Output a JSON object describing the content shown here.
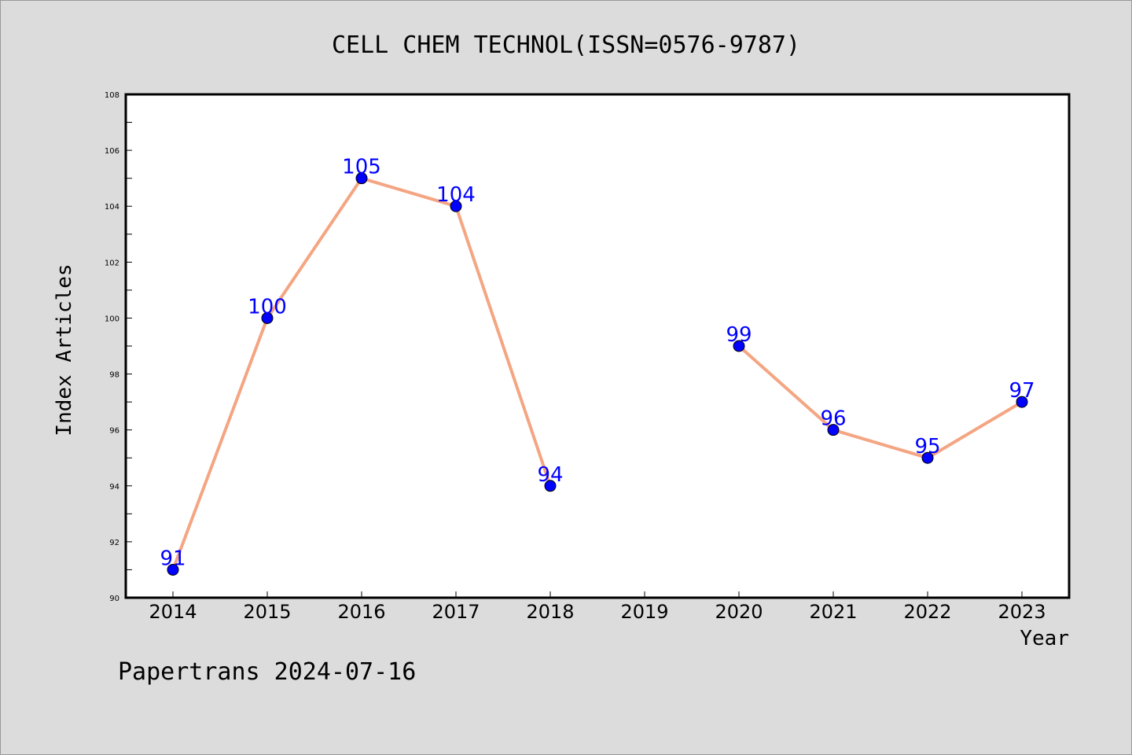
{
  "chart_data": {
    "type": "line",
    "title": "CELL CHEM TECHNOL(ISSN=0576-9787)",
    "xlabel": "Year",
    "ylabel": "Index Articles",
    "footer": "Papertrans 2024-07-16",
    "categories": [
      "2014",
      "2015",
      "2016",
      "2017",
      "2018",
      "2019",
      "2020",
      "2021",
      "2022",
      "2023"
    ],
    "y_ticks": [
      "90",
      "92",
      "94",
      "96",
      "98",
      "100",
      "102",
      "104",
      "106",
      "108"
    ],
    "ylim": [
      90,
      108
    ],
    "grid": false,
    "series": [
      {
        "values": [
          91,
          100,
          105,
          104,
          94,
          null,
          99,
          96,
          95,
          97
        ],
        "data_labels": [
          "91",
          "100",
          "105",
          "104",
          "94",
          "",
          "99",
          "96",
          "95",
          "97"
        ]
      }
    ],
    "colors": {
      "line": "#f4a582",
      "marker": "#0000ff",
      "label": "#0000ff",
      "background": "#dcdcdc",
      "plot_bg": "#ffffff"
    }
  }
}
